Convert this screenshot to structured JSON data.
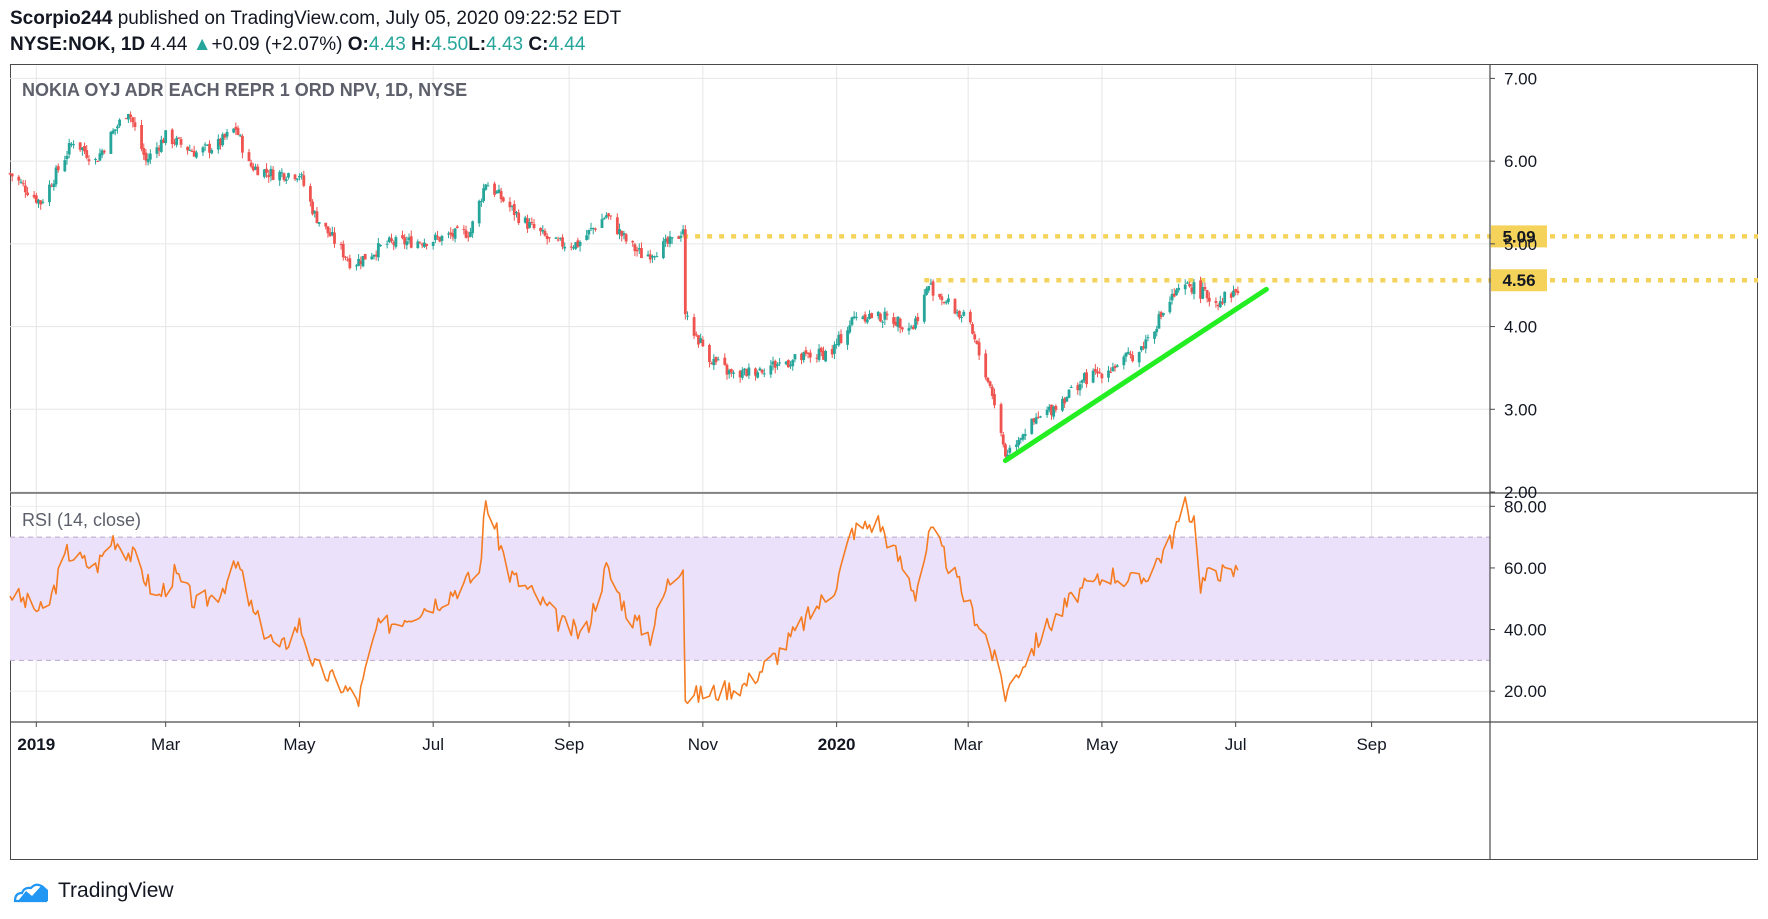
{
  "header": {
    "author": "Scorpio244",
    "published_text": " published on TradingView.com, July 05, 2020 09:22:52 EDT",
    "symbol": "NYSE:NOK, 1D",
    "last": "4.44",
    "change": "+0.09 (+2.07%)",
    "o_label": "O:",
    "o_value": "4.43",
    "h_label": "H:",
    "h_value": "4.50",
    "l_label": "L:",
    "l_value": "4.43",
    "c_label": "C:",
    "c_value": "4.44"
  },
  "footer": {
    "brand": "TradingView"
  },
  "colors": {
    "up": "#26a69a",
    "down": "#ef5350",
    "rsi_line": "#f57c22",
    "rsi_band": "#ece1fa",
    "level_line": "#f5d35b",
    "trendline": "#22ee22",
    "grid": "#e6e6e6"
  },
  "chart_data": [
    {
      "type": "candlestick",
      "title": "NOKIA OYJ ADR EACH REPR 1 ORD NPV, 1D, NYSE",
      "ylim": [
        2.0,
        7.15
      ],
      "y_ticks": [
        "7.00",
        "6.00",
        "5.00",
        "4.00",
        "3.00",
        "2.00"
      ],
      "x_tick_labels": [
        "2019",
        "Mar",
        "May",
        "Jul",
        "Sep",
        "Nov",
        "2020",
        "Mar",
        "May",
        "Jul",
        "Sep"
      ],
      "x_tick_dates": [
        "2019-01-01",
        "2019-03-01",
        "2019-05-01",
        "2019-07-01",
        "2019-09-01",
        "2019-11-01",
        "2020-01-01",
        "2020-03-01",
        "2020-05-01",
        "2020-07-01",
        "2020-09-01"
      ],
      "x_range": [
        "2018-12-20",
        "2020-10-25"
      ],
      "price_path": [
        [
          "2018-12-20",
          5.85
        ],
        [
          "2019-01-03",
          5.5
        ],
        [
          "2019-01-18",
          6.25
        ],
        [
          "2019-01-28",
          6.0
        ],
        [
          "2019-02-05",
          6.35
        ],
        [
          "2019-02-12",
          6.62
        ],
        [
          "2019-02-20",
          6.0
        ],
        [
          "2019-03-01",
          6.3
        ],
        [
          "2019-03-15",
          6.1
        ],
        [
          "2019-03-25",
          6.2
        ],
        [
          "2019-04-02",
          6.4
        ],
        [
          "2019-04-08",
          5.95
        ],
        [
          "2019-04-18",
          5.85
        ],
        [
          "2019-05-01",
          5.85
        ],
        [
          "2019-05-08",
          5.35
        ],
        [
          "2019-05-25",
          4.75
        ],
        [
          "2019-06-10",
          5.0
        ],
        [
          "2019-07-01",
          5.05
        ],
        [
          "2019-07-18",
          5.15
        ],
        [
          "2019-07-25",
          5.75
        ],
        [
          "2019-08-10",
          5.3
        ],
        [
          "2019-08-25",
          5.0
        ],
        [
          "2019-09-05",
          5.0
        ],
        [
          "2019-09-18",
          5.35
        ],
        [
          "2019-09-28",
          5.0
        ],
        [
          "2019-10-05",
          4.85
        ],
        [
          "2019-10-20",
          5.05
        ],
        [
          "2019-10-23",
          5.2
        ],
        [
          "2019-10-24",
          4.1
        ],
        [
          "2019-11-05",
          3.6
        ],
        [
          "2019-11-15",
          3.4
        ],
        [
          "2019-12-05",
          3.55
        ],
        [
          "2019-12-30",
          3.7
        ],
        [
          "2020-01-10",
          4.15
        ],
        [
          "2020-01-25",
          4.1
        ],
        [
          "2020-02-05",
          4.0
        ],
        [
          "2020-02-12",
          4.5
        ],
        [
          "2020-02-20",
          4.3
        ],
        [
          "2020-03-01",
          4.05
        ],
        [
          "2020-03-12",
          3.2
        ],
        [
          "2020-03-18",
          2.45
        ],
        [
          "2020-03-25",
          2.7
        ],
        [
          "2020-04-10",
          3.05
        ],
        [
          "2020-04-22",
          3.35
        ],
        [
          "2020-05-05",
          3.5
        ],
        [
          "2020-05-18",
          3.7
        ],
        [
          "2020-06-02",
          4.35
        ],
        [
          "2020-06-10",
          4.5
        ],
        [
          "2020-06-22",
          4.3
        ],
        [
          "2020-07-02",
          4.44
        ]
      ],
      "levels": [
        {
          "value": 5.09,
          "label": "5.09",
          "from": "2019-10-23"
        },
        {
          "value": 4.56,
          "label": "4.56",
          "from": "2020-02-10"
        }
      ],
      "trendline": [
        [
          "2020-03-18",
          2.38
        ],
        [
          "2020-07-15",
          4.45
        ]
      ]
    },
    {
      "type": "line",
      "title": "RSI (14, close)",
      "ylim": [
        10,
        84
      ],
      "y_ticks": [
        "80.00",
        "60.00",
        "40.00",
        "20.00"
      ],
      "band": [
        30,
        70
      ],
      "series": [
        {
          "values": [
            [
              "2018-12-20",
              52
            ],
            [
              "2019-01-05",
              45
            ],
            [
              "2019-01-15",
              65
            ],
            [
              "2019-01-28",
              60
            ],
            [
              "2019-02-05",
              70
            ],
            [
              "2019-02-15",
              63
            ],
            [
              "2019-02-25",
              50
            ],
            [
              "2019-03-05",
              58
            ],
            [
              "2019-03-15",
              48
            ],
            [
              "2019-03-25",
              52
            ],
            [
              "2019-04-03",
              61
            ],
            [
              "2019-04-10",
              45
            ],
            [
              "2019-04-22",
              33
            ],
            [
              "2019-05-01",
              42
            ],
            [
              "2019-05-08",
              28
            ],
            [
              "2019-05-20",
              22
            ],
            [
              "2019-05-28",
              17
            ],
            [
              "2019-06-05",
              40
            ],
            [
              "2019-06-20",
              45
            ],
            [
              "2019-07-05",
              50
            ],
            [
              "2019-07-15",
              55
            ],
            [
              "2019-07-22",
              58
            ],
            [
              "2019-07-25",
              82
            ],
            [
              "2019-08-05",
              58
            ],
            [
              "2019-08-18",
              50
            ],
            [
              "2019-08-28",
              42
            ],
            [
              "2019-09-08",
              38
            ],
            [
              "2019-09-18",
              60
            ],
            [
              "2019-09-28",
              45
            ],
            [
              "2019-10-08",
              38
            ],
            [
              "2019-10-16",
              55
            ],
            [
              "2019-10-23",
              62
            ],
            [
              "2019-10-24",
              18
            ],
            [
              "2019-11-08",
              20
            ],
            [
              "2019-11-20",
              22
            ],
            [
              "2019-12-05",
              32
            ],
            [
              "2019-12-20",
              45
            ],
            [
              "2020-01-01",
              55
            ],
            [
              "2020-01-08",
              72
            ],
            [
              "2020-01-20",
              75
            ],
            [
              "2020-01-30",
              62
            ],
            [
              "2020-02-06",
              52
            ],
            [
              "2020-02-13",
              72
            ],
            [
              "2020-02-22",
              60
            ],
            [
              "2020-03-01",
              48
            ],
            [
              "2020-03-08",
              40
            ],
            [
              "2020-03-15",
              26
            ],
            [
              "2020-03-18",
              19
            ],
            [
              "2020-03-25",
              28
            ],
            [
              "2020-04-05",
              40
            ],
            [
              "2020-04-20",
              52
            ],
            [
              "2020-05-05",
              58
            ],
            [
              "2020-05-18",
              55
            ],
            [
              "2020-06-01",
              68
            ],
            [
              "2020-06-08",
              80
            ],
            [
              "2020-06-12",
              76
            ],
            [
              "2020-06-15",
              55
            ],
            [
              "2020-06-22",
              60
            ],
            [
              "2020-06-28",
              57
            ],
            [
              "2020-07-02",
              60
            ]
          ]
        }
      ]
    }
  ]
}
